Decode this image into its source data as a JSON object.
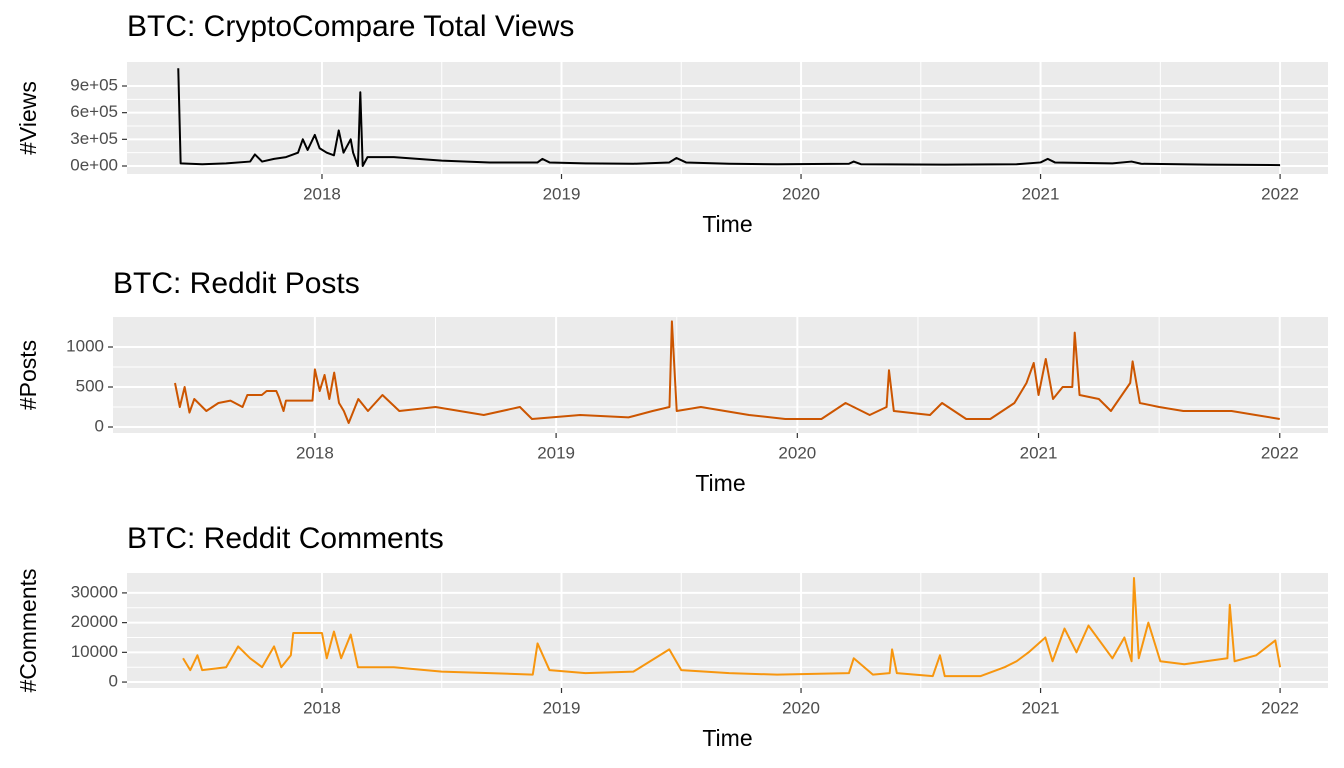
{
  "chart_data": [
    {
      "type": "line",
      "title": "BTC: CryptoCompare Total Views",
      "x_label": "Time",
      "y_label": "#Views",
      "color": "#000000",
      "grid": true,
      "xlim": [
        2017.186,
        2022.2
      ],
      "xticks": [
        2018,
        2019,
        2020,
        2021,
        2022
      ],
      "ylim": [
        -90000,
        1170000
      ],
      "yticks": [
        {
          "value": 0,
          "label": "0e+00"
        },
        {
          "value": 300000,
          "label": "3e+05"
        },
        {
          "value": 600000,
          "label": "6e+05"
        },
        {
          "value": 900000,
          "label": "9e+05"
        }
      ],
      "x": [
        2017.4,
        2017.41,
        2017.5,
        2017.6,
        2017.7,
        2017.72,
        2017.75,
        2017.8,
        2017.85,
        2017.9,
        2017.92,
        2017.94,
        2017.97,
        2017.99,
        2018.02,
        2018.05,
        2018.07,
        2018.09,
        2018.12,
        2018.13,
        2018.15,
        2018.16,
        2018.17,
        2018.19,
        2018.3,
        2018.4,
        2018.5,
        2018.7,
        2018.9,
        2018.92,
        2018.95,
        2019.1,
        2019.3,
        2019.45,
        2019.48,
        2019.52,
        2019.7,
        2019.9,
        2020.2,
        2020.22,
        2020.25,
        2020.6,
        2020.9,
        2021.0,
        2021.03,
        2021.06,
        2021.3,
        2021.38,
        2021.42,
        2021.7,
        2022.0
      ],
      "values": [
        1100000,
        30000,
        20000,
        30000,
        50000,
        130000,
        50000,
        80000,
        100000,
        150000,
        300000,
        180000,
        350000,
        200000,
        150000,
        120000,
        400000,
        150000,
        300000,
        150000,
        0,
        830000,
        0,
        100000,
        100000,
        80000,
        60000,
        40000,
        40000,
        80000,
        40000,
        30000,
        25000,
        40000,
        90000,
        40000,
        25000,
        20000,
        25000,
        50000,
        20000,
        15000,
        20000,
        40000,
        80000,
        40000,
        30000,
        50000,
        25000,
        15000,
        10000
      ]
    },
    {
      "type": "line",
      "title": "BTC: Reddit Posts",
      "x_label": "Time",
      "y_label": "#Posts",
      "color": "#cc5500",
      "grid": true,
      "xlim": [
        2017.163,
        2022.2
      ],
      "xticks": [
        2018,
        2019,
        2020,
        2021,
        2022
      ],
      "ylim": [
        -75,
        1375
      ],
      "yticks": [
        0,
        500,
        1000
      ],
      "x": [
        2017.42,
        2017.44,
        2017.46,
        2017.48,
        2017.5,
        2017.55,
        2017.6,
        2017.65,
        2017.7,
        2017.72,
        2017.78,
        2017.8,
        2017.84,
        2017.85,
        2017.87,
        2017.88,
        2017.99,
        2018.0,
        2018.02,
        2018.04,
        2018.06,
        2018.08,
        2018.1,
        2018.12,
        2018.14,
        2018.18,
        2018.22,
        2018.28,
        2018.35,
        2018.5,
        2018.7,
        2018.85,
        2018.9,
        2019.1,
        2019.3,
        2019.4,
        2019.47,
        2019.48,
        2019.5,
        2019.6,
        2019.8,
        2019.95,
        2020.1,
        2020.2,
        2020.3,
        2020.37,
        2020.38,
        2020.4,
        2020.55,
        2020.6,
        2020.7,
        2020.8,
        2020.9,
        2020.95,
        2020.98,
        2021.0,
        2021.03,
        2021.06,
        2021.1,
        2021.14,
        2021.15,
        2021.17,
        2021.25,
        2021.3,
        2021.38,
        2021.39,
        2021.42,
        2021.5,
        2021.6,
        2021.8,
        2021.9,
        2022.0
      ],
      "values": [
        550,
        250,
        500,
        180,
        350,
        200,
        300,
        330,
        250,
        400,
        400,
        450,
        450,
        380,
        200,
        330,
        330,
        720,
        450,
        650,
        350,
        680,
        300,
        200,
        50,
        350,
        200,
        400,
        200,
        250,
        150,
        250,
        100,
        150,
        120,
        200,
        250,
        1320,
        200,
        250,
        150,
        100,
        100,
        300,
        150,
        250,
        710,
        200,
        150,
        300,
        100,
        100,
        300,
        550,
        800,
        400,
        850,
        350,
        500,
        500,
        1180,
        400,
        350,
        200,
        550,
        820,
        300,
        250,
        200,
        200,
        150,
        100
      ]
    },
    {
      "type": "line",
      "title": "BTC: Reddit Comments",
      "x_label": "Time",
      "y_label": "#Comments",
      "color": "#f7960f",
      "grid": true,
      "xlim": [
        2017.186,
        2022.2
      ],
      "xticks": [
        2018,
        2019,
        2020,
        2021,
        2022
      ],
      "ylim": [
        -2000,
        36700
      ],
      "yticks": [
        0,
        10000,
        20000,
        30000
      ],
      "x": [
        2017.42,
        2017.45,
        2017.48,
        2017.5,
        2017.6,
        2017.65,
        2017.7,
        2017.75,
        2017.8,
        2017.83,
        2017.87,
        2017.88,
        2018.0,
        2018.02,
        2018.05,
        2018.08,
        2018.12,
        2018.15,
        2018.3,
        2018.5,
        2018.7,
        2018.88,
        2018.9,
        2018.95,
        2019.1,
        2019.3,
        2019.45,
        2019.5,
        2019.7,
        2019.9,
        2020.2,
        2020.22,
        2020.3,
        2020.37,
        2020.38,
        2020.4,
        2020.55,
        2020.58,
        2020.6,
        2020.75,
        2020.85,
        2020.9,
        2020.95,
        2021.02,
        2021.05,
        2021.1,
        2021.15,
        2021.2,
        2021.3,
        2021.35,
        2021.38,
        2021.39,
        2021.41,
        2021.45,
        2021.5,
        2021.6,
        2021.78,
        2021.79,
        2021.81,
        2021.9,
        2021.98,
        2022.0
      ],
      "values": [
        8000,
        4000,
        9000,
        4000,
        5000,
        12000,
        8000,
        5000,
        12000,
        5000,
        9000,
        16500,
        16500,
        8000,
        17000,
        8000,
        16000,
        5000,
        5000,
        3500,
        3000,
        2500,
        13000,
        4000,
        3000,
        3500,
        11000,
        4000,
        3000,
        2500,
        3000,
        8000,
        2500,
        3000,
        11000,
        3000,
        2000,
        9000,
        2000,
        2000,
        5000,
        7000,
        10000,
        15000,
        7000,
        18000,
        10000,
        19000,
        8000,
        15000,
        7000,
        35000,
        8000,
        20000,
        7000,
        6000,
        8000,
        26000,
        7000,
        9000,
        14000,
        5000
      ]
    }
  ]
}
